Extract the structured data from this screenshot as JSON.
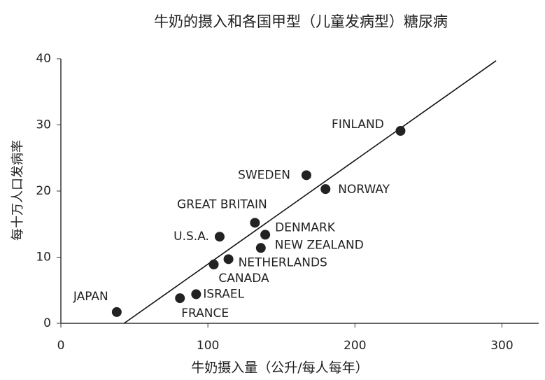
{
  "chart_data": {
    "type": "scatter",
    "title": "牛奶的摄入和各国甲型（儿童发病型）糖尿病",
    "x_label": "牛奶摄入量（公升/每人每年）",
    "y_label": "每十万人口发病率",
    "labels": [
      "JAPAN",
      "FRANCE",
      "ISRAEL",
      "CANADA",
      "NETHERLANDS",
      "U.S.A.",
      "GREAT BRITAIN",
      "DENMARK",
      "NEW ZEALAND",
      "SWEDEN",
      "NORWAY",
      "FINLAND"
    ],
    "x": [
      38,
      81,
      92,
      104,
      114,
      108,
      132,
      139,
      136,
      167,
      180,
      231
    ],
    "y": [
      1.7,
      3.8,
      4.4,
      8.9,
      9.7,
      13.1,
      15.2,
      13.4,
      11.4,
      22.4,
      20.3,
      29.1
    ],
    "color": "#222222",
    "trendline": {
      "x": [
        43,
        296
      ],
      "y": [
        0,
        39.7
      ],
      "color": "#111111"
    },
    "xlim": [
      0,
      325
    ],
    "ylim": [
      0,
      40
    ],
    "xticks": [
      0,
      100,
      200,
      300
    ],
    "yticks": [
      0,
      10,
      20,
      30,
      40
    ],
    "grid": false
  }
}
